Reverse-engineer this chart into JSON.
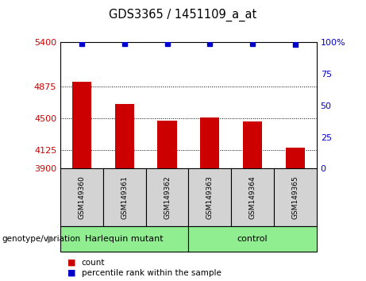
{
  "title": "GDS3365 / 1451109_a_at",
  "samples": [
    "GSM149360",
    "GSM149361",
    "GSM149362",
    "GSM149363",
    "GSM149364",
    "GSM149365"
  ],
  "counts": [
    4930,
    4670,
    4470,
    4505,
    4455,
    4145
  ],
  "percentile_ranks": [
    99,
    99,
    99,
    99,
    99,
    98
  ],
  "bar_color": "#cc0000",
  "dot_color": "#0000cc",
  "ylim_left": [
    3900,
    5400
  ],
  "ylim_right": [
    0,
    100
  ],
  "yticks_left": [
    3900,
    4125,
    4500,
    4875,
    5400
  ],
  "ytick_labels_left": [
    "3900",
    "4125",
    "4500",
    "4875",
    "5400"
  ],
  "yticks_right": [
    0,
    25,
    50,
    75,
    100
  ],
  "ytick_labels_right": [
    "0",
    "25",
    "50",
    "75",
    "100%"
  ],
  "groups": [
    {
      "label": "Harlequin mutant",
      "count": 3,
      "color": "#90ee90"
    },
    {
      "label": "control",
      "count": 3,
      "color": "#90ee90"
    }
  ],
  "group_label_prefix": "genotype/variation",
  "legend_count_label": "count",
  "legend_percentile_label": "percentile rank within the sample",
  "tick_label_color_left": "#cc0000",
  "tick_label_color_right": "#0000cc",
  "grid_color": "#000000",
  "background_xlabel": "#d3d3d3",
  "background_group": "#90ee90",
  "bar_width": 0.45
}
